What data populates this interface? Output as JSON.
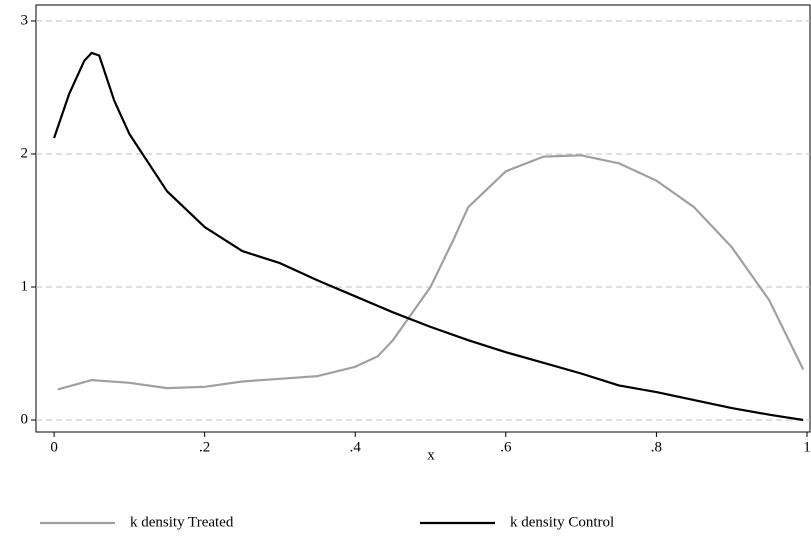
{
  "chart_data": {
    "type": "line",
    "x_label": "x",
    "xlim": [
      -0.024,
      1.004
    ],
    "ylim": [
      -0.09,
      3.12
    ],
    "xticks": [
      0,
      {
        "value": 0.2,
        "label": ".2"
      },
      {
        "value": 0.4,
        "label": ".4"
      },
      {
        "value": 0.6,
        "label": ".6"
      },
      {
        "value": 0.8,
        "label": ".8"
      },
      1
    ],
    "yticks": [
      0,
      1,
      2,
      3
    ],
    "grid": true,
    "legend": "bottom",
    "series": [
      {
        "name": "k density Treated",
        "color": "#a0a0a0",
        "x": [
          0.005,
          0.05,
          0.1,
          0.15,
          0.2,
          0.25,
          0.3,
          0.35,
          0.4,
          0.43,
          0.45,
          0.5,
          0.53,
          0.55,
          0.6,
          0.65,
          0.7,
          0.75,
          0.8,
          0.85,
          0.9,
          0.95,
          0.995
        ],
        "values": [
          0.23,
          0.3,
          0.28,
          0.24,
          0.25,
          0.29,
          0.31,
          0.33,
          0.4,
          0.48,
          0.6,
          1.0,
          1.35,
          1.6,
          1.87,
          1.98,
          1.99,
          1.93,
          1.8,
          1.6,
          1.3,
          0.9,
          0.38
        ]
      },
      {
        "name": "k density Control",
        "color": "#000000",
        "x": [
          0.0,
          0.02,
          0.04,
          0.05,
          0.06,
          0.08,
          0.1,
          0.15,
          0.2,
          0.25,
          0.3,
          0.35,
          0.4,
          0.45,
          0.5,
          0.55,
          0.6,
          0.65,
          0.7,
          0.75,
          0.77,
          0.8,
          0.85,
          0.9,
          0.95,
          0.995
        ],
        "values": [
          2.12,
          2.45,
          2.7,
          2.76,
          2.74,
          2.4,
          2.15,
          1.72,
          1.45,
          1.27,
          1.18,
          1.05,
          0.93,
          0.81,
          0.7,
          0.6,
          0.51,
          0.43,
          0.35,
          0.26,
          0.24,
          0.21,
          0.15,
          0.09,
          0.04,
          0.0
        ]
      }
    ]
  }
}
